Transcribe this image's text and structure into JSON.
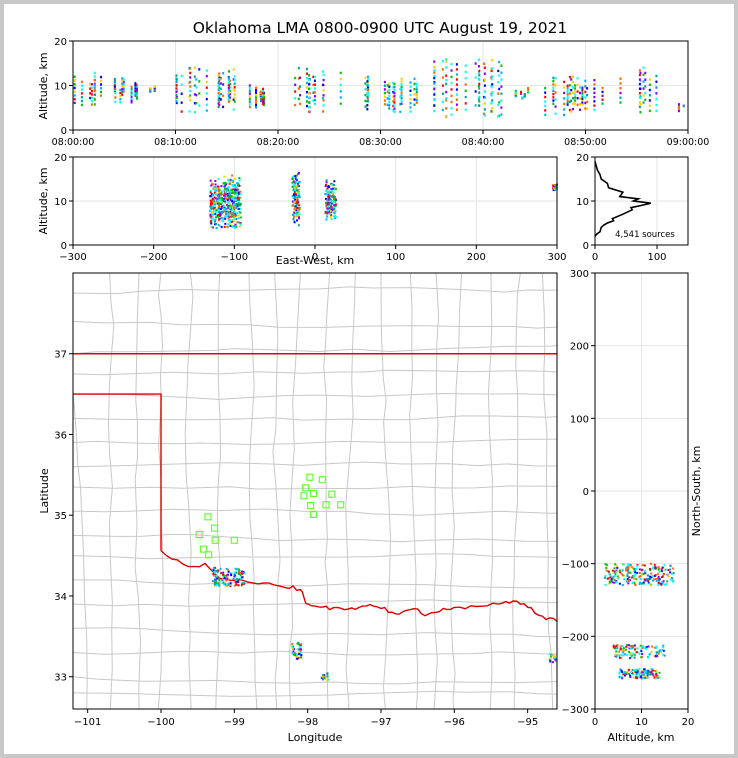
{
  "chart_data": [
    {
      "type": "scatter",
      "panel": "altitude-vs-time",
      "title": "Oklahoma LMA 0800-0900 UTC August 19, 2021",
      "xlabel": "",
      "ylabel": "Altitude, km",
      "xlim_minutes": [
        0,
        60
      ],
      "ylim": [
        0,
        20
      ],
      "xticks": [
        "08:00:00",
        "08:10:00",
        "08:20:00",
        "08:30:00",
        "08:40:00",
        "08:50:00",
        "09:00:00"
      ],
      "yticks": [
        "0",
        "10",
        "20"
      ],
      "grid": true,
      "clusters": [
        {
          "t": [
            0,
            3
          ],
          "alt": [
            5,
            13
          ]
        },
        {
          "t": [
            4,
            8
          ],
          "alt": [
            6,
            12
          ]
        },
        {
          "t": [
            10,
            16
          ],
          "alt": [
            4,
            14
          ]
        },
        {
          "t": [
            17,
            19
          ],
          "alt": [
            5,
            10
          ]
        },
        {
          "t": [
            20,
            27
          ],
          "alt": [
            4,
            14
          ]
        },
        {
          "t": [
            28,
            34
          ],
          "alt": [
            4,
            12
          ]
        },
        {
          "t": [
            35,
            42
          ],
          "alt": [
            3,
            16
          ]
        },
        {
          "t": [
            43,
            45
          ],
          "alt": [
            6,
            10
          ]
        },
        {
          "t": [
            46,
            52
          ],
          "alt": [
            3,
            12
          ]
        },
        {
          "t": [
            53,
            57
          ],
          "alt": [
            4,
            14
          ]
        },
        {
          "t": [
            59,
            60
          ],
          "alt": [
            3,
            6
          ]
        }
      ]
    },
    {
      "type": "scatter",
      "panel": "altitude-vs-east-west",
      "xlabel": "East-West, km",
      "ylabel": "Altitude, km",
      "xlim": [
        -300,
        300
      ],
      "ylim": [
        0,
        20
      ],
      "xticks": [
        "−300",
        "−200",
        "−100",
        "0",
        "100",
        "200",
        "300"
      ],
      "yticks": [
        "0",
        "10",
        "20"
      ],
      "grid": true,
      "clusters": [
        {
          "x": [
            -130,
            -92
          ],
          "alt": [
            3,
            16
          ]
        },
        {
          "x": [
            -28,
            -19
          ],
          "alt": [
            4,
            17
          ]
        },
        {
          "x": [
            13,
            26
          ],
          "alt": [
            5,
            15
          ]
        },
        {
          "x": [
            295,
            300
          ],
          "alt": [
            12,
            14
          ]
        }
      ]
    },
    {
      "type": "line",
      "panel": "altitude-histogram",
      "xlim": [
        0,
        150
      ],
      "ylim": [
        0,
        20
      ],
      "xticks": [
        "0",
        "100"
      ],
      "yticks": [
        "0",
        "10",
        "20"
      ],
      "annotation": "4,541 sources",
      "x": [
        0,
        3,
        8,
        10,
        14,
        20,
        30,
        28,
        45,
        60,
        58,
        75,
        90,
        62,
        70,
        40,
        45,
        22,
        20,
        10,
        8,
        4,
        2,
        0
      ],
      "y": [
        2,
        2.5,
        3,
        4,
        4.5,
        5,
        5.5,
        6,
        7,
        8,
        8.5,
        9,
        9.5,
        10,
        10.5,
        11,
        12,
        13,
        14,
        15,
        16,
        17,
        18,
        19
      ]
    },
    {
      "type": "map",
      "panel": "plan-view",
      "xlabel": "Longitude",
      "ylabel": "Latitude",
      "xlim": [
        -101.2,
        -94.6
      ],
      "ylim": [
        32.6,
        38.0
      ],
      "xticks": [
        "−101",
        "−100",
        "−99",
        "−98",
        "−97",
        "−96",
        "−95"
      ],
      "yticks": [
        "33",
        "34",
        "35",
        "36",
        "37"
      ],
      "stations": [
        {
          "lon": -97.97,
          "lat": 35.47
        },
        {
          "lon": -97.8,
          "lat": 35.44
        },
        {
          "lon": -98.03,
          "lat": 35.34
        },
        {
          "lon": -97.92,
          "lat": 35.27
        },
        {
          "lon": -98.05,
          "lat": 35.24
        },
        {
          "lon": -97.67,
          "lat": 35.26
        },
        {
          "lon": -97.96,
          "lat": 35.12
        },
        {
          "lon": -97.75,
          "lat": 35.13
        },
        {
          "lon": -97.55,
          "lat": 35.13
        },
        {
          "lon": -97.92,
          "lat": 35.01
        },
        {
          "lon": -99.36,
          "lat": 34.98
        },
        {
          "lon": -99.27,
          "lat": 34.84
        },
        {
          "lon": -99.48,
          "lat": 34.76
        },
        {
          "lon": -99.26,
          "lat": 34.69
        },
        {
          "lon": -99.0,
          "lat": 34.69
        },
        {
          "lon": -99.42,
          "lat": 34.58
        },
        {
          "lon": -99.35,
          "lat": 34.51
        }
      ],
      "source_clusters": [
        {
          "lon": [
            -99.3,
            -98.85
          ],
          "lat": [
            34.12,
            34.35
          ]
        },
        {
          "lon": [
            -98.22,
            -98.08
          ],
          "lat": [
            33.22,
            33.42
          ]
        },
        {
          "lon": [
            -97.82,
            -97.68
          ],
          "lat": [
            32.95,
            33.05
          ]
        },
        {
          "lon": [
            -94.7,
            -94.6
          ],
          "lat": [
            33.18,
            33.3
          ]
        }
      ]
    },
    {
      "type": "scatter",
      "panel": "north-south-vs-altitude",
      "xlabel": "Altitude, km",
      "ylabel": "North-South, km",
      "xlim": [
        0,
        20
      ],
      "ylim": [
        -300,
        300
      ],
      "xticks": [
        "0",
        "10",
        "20"
      ],
      "yticks": [
        "−300",
        "−200",
        "−100",
        "0",
        "100",
        "200",
        "300"
      ],
      "grid": true,
      "clusters": [
        {
          "alt": [
            2,
            17
          ],
          "y": [
            -130,
            -100
          ]
        },
        {
          "alt": [
            4,
            15
          ],
          "y": [
            -230,
            -212
          ]
        },
        {
          "alt": [
            5,
            14
          ],
          "y": [
            -258,
            -245
          ]
        }
      ]
    }
  ]
}
